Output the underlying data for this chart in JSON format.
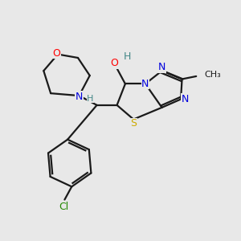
{
  "background_color": "#e8e8e8",
  "bond_color": "#1a1a1a",
  "atom_colors": {
    "N": "#0000dd",
    "O": "#ff0000",
    "S": "#ccaa00",
    "Cl": "#228800",
    "H": "#448888",
    "C": "#1a1a1a"
  },
  "figsize": [
    3.0,
    3.0
  ],
  "dpi": 100
}
